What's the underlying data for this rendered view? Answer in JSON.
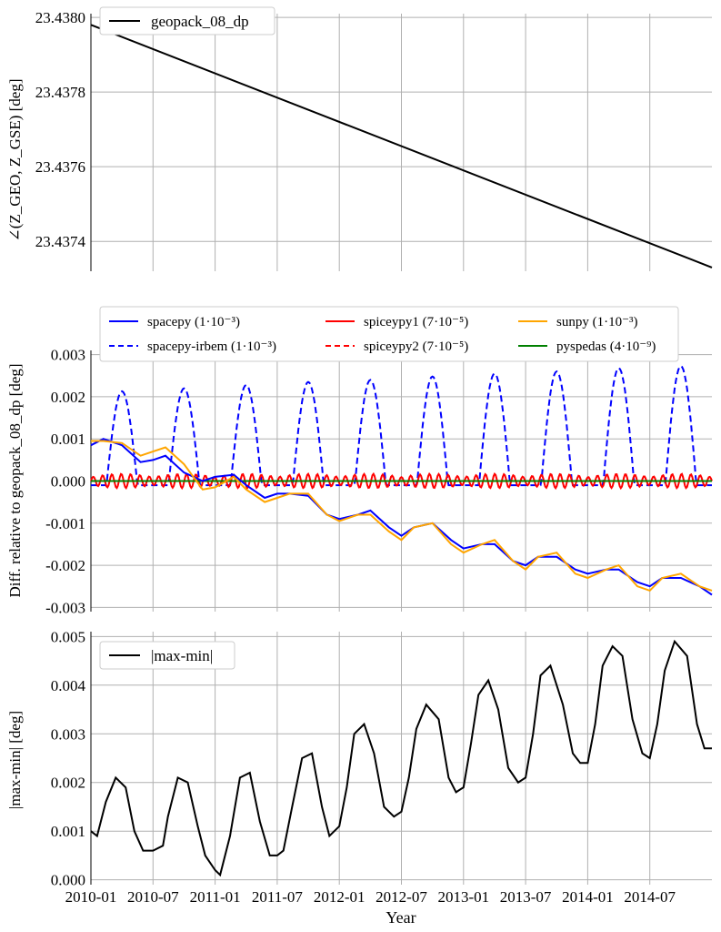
{
  "xlabel": "Year",
  "xticks": [
    "2010-01",
    "2010-07",
    "2011-01",
    "2011-07",
    "2012-01",
    "2012-07",
    "2013-01",
    "2013-07",
    "2014-01",
    "2014-07"
  ],
  "chart_data": [
    {
      "type": "line",
      "title": "",
      "ylabel": "∠(Z_GEO, Z_GSE) [deg]",
      "ylim": [
        23.43732,
        23.43801
      ],
      "yticks": [
        "23.4374",
        "23.4376",
        "23.4378",
        "23.4380"
      ],
      "grid": true,
      "legend_position": "top-left",
      "x": [
        "2010-01-01",
        "2014-12-31"
      ],
      "series": [
        {
          "name": "geopack_08_dp",
          "color": "#000000",
          "style": "solid",
          "values": [
            23.43798,
            23.43733
          ]
        }
      ]
    },
    {
      "type": "line",
      "ylabel": "Diff. relative to geopack_08_dp [deg]",
      "ylim": [
        -0.0031,
        0.0031
      ],
      "yticks": [
        "-0.003",
        "-0.002",
        "-0.001",
        "0.000",
        "0.001",
        "0.002",
        "0.003"
      ],
      "grid": true,
      "legend_position": "top",
      "legend": [
        {
          "label": "spacepy",
          "err": "(1·10⁻³)",
          "color": "#0000ff",
          "style": "solid"
        },
        {
          "label": "spacepy-irbem",
          "err": "(1·10⁻³)",
          "color": "#0000ff",
          "style": "dashed"
        },
        {
          "label": "spiceypy1",
          "err": "(7·10⁻⁵)",
          "color": "#ff0000",
          "style": "solid"
        },
        {
          "label": "spiceypy2",
          "err": "(7·10⁻⁵)",
          "color": "#ff0000",
          "style": "dashed"
        },
        {
          "label": "sunpy",
          "err": "(1·10⁻³)",
          "color": "#ffa500",
          "style": "solid"
        },
        {
          "label": "pyspedas",
          "err": "(4·10⁻⁹)",
          "color": "#008000",
          "style": "solid"
        }
      ],
      "x_years": [
        2010.0,
        2010.1,
        2010.25,
        2010.4,
        2010.5,
        2010.6,
        2010.75,
        2010.9,
        2011.0,
        2011.15,
        2011.25,
        2011.4,
        2011.5,
        2011.6,
        2011.75,
        2011.9,
        2012.0,
        2012.15,
        2012.25,
        2012.4,
        2012.5,
        2012.6,
        2012.75,
        2012.9,
        2013.0,
        2013.15,
        2013.25,
        2013.4,
        2013.5,
        2013.6,
        2013.75,
        2013.9,
        2014.0,
        2014.15,
        2014.25,
        2014.4,
        2014.5,
        2014.6,
        2014.75,
        2014.9,
        2015.0
      ],
      "series": [
        {
          "name": "spacepy",
          "values": [
            0.00085,
            0.001,
            0.00085,
            0.00045,
            0.0005,
            0.0006,
            0.0002,
            0.0,
            0.0001,
            0.00015,
            -0.0001,
            -0.0004,
            -0.0003,
            -0.0003,
            -0.00035,
            -0.0008,
            -0.0009,
            -0.0008,
            -0.0007,
            -0.0011,
            -0.0013,
            -0.0011,
            -0.001,
            -0.0014,
            -0.0016,
            -0.0015,
            -0.0015,
            -0.0019,
            -0.002,
            -0.0018,
            -0.0018,
            -0.0021,
            -0.0022,
            -0.0021,
            -0.0021,
            -0.0024,
            -0.0025,
            -0.0023,
            -0.0023,
            -0.0025,
            -0.0027
          ]
        },
        {
          "name": "sunpy",
          "values": [
            0.00095,
            0.00095,
            0.0009,
            0.0006,
            0.0007,
            0.0008,
            0.0004,
            -0.0002,
            -0.00015,
            0.0001,
            -0.0002,
            -0.0005,
            -0.0004,
            -0.0003,
            -0.0003,
            -0.0008,
            -0.00095,
            -0.0008,
            -0.0008,
            -0.0012,
            -0.0014,
            -0.0011,
            -0.001,
            -0.0015,
            -0.0017,
            -0.0015,
            -0.0014,
            -0.0019,
            -0.0021,
            -0.0018,
            -0.0017,
            -0.0022,
            -0.0023,
            -0.0021,
            -0.002,
            -0.0025,
            -0.0026,
            -0.0023,
            -0.0022,
            -0.0025,
            -0.0026
          ]
        }
      ],
      "irbem_peaks": {
        "years": [
          2010.25,
          2010.75,
          2011.25,
          2011.75,
          2012.25,
          2012.75,
          2013.25,
          2013.75,
          2014.25,
          2014.75
        ],
        "values": [
          0.00213,
          0.0022,
          0.00228,
          0.00235,
          0.0024,
          0.00248,
          0.00255,
          0.0026,
          0.00268,
          0.00273
        ],
        "base": -0.0001
      },
      "spiceypy_amplitude": 0.00017
    },
    {
      "type": "line",
      "ylabel": "|max-min| [deg]",
      "ylim": [
        -0.0001,
        0.0051
      ],
      "yticks": [
        "0.000",
        "0.001",
        "0.002",
        "0.003",
        "0.004",
        "0.005"
      ],
      "grid": true,
      "legend_position": "top-left",
      "series": [
        {
          "name": "|max-min|",
          "color": "#000000",
          "style": "solid",
          "x_years": [
            2010.0,
            2010.05,
            2010.12,
            2010.2,
            2010.28,
            2010.35,
            2010.42,
            2010.5,
            2010.58,
            2010.62,
            2010.7,
            2010.78,
            2010.86,
            2010.92,
            2011.0,
            2011.04,
            2011.12,
            2011.2,
            2011.28,
            2011.36,
            2011.44,
            2011.5,
            2011.55,
            2011.62,
            2011.7,
            2011.78,
            2011.86,
            2011.92,
            2012.0,
            2012.06,
            2012.12,
            2012.2,
            2012.28,
            2012.36,
            2012.44,
            2012.5,
            2012.56,
            2012.62,
            2012.7,
            2012.8,
            2012.88,
            2012.94,
            2013.0,
            2013.06,
            2013.12,
            2013.2,
            2013.28,
            2013.36,
            2013.44,
            2013.5,
            2013.56,
            2013.62,
            2013.7,
            2013.8,
            2013.88,
            2013.94,
            2014.0,
            2014.06,
            2014.12,
            2014.2,
            2014.28,
            2014.36,
            2014.44,
            2014.5,
            2014.56,
            2014.62,
            2014.7,
            2014.8,
            2014.88,
            2014.94,
            2015.0
          ],
          "values": [
            0.001,
            0.0009,
            0.0016,
            0.0021,
            0.0019,
            0.001,
            0.0006,
            0.0006,
            0.0007,
            0.0013,
            0.0021,
            0.002,
            0.0011,
            0.0005,
            0.0002,
            0.0001,
            0.0009,
            0.0021,
            0.0022,
            0.0012,
            0.0005,
            0.0005,
            0.0006,
            0.0015,
            0.0025,
            0.0026,
            0.0015,
            0.0009,
            0.0011,
            0.0019,
            0.003,
            0.0032,
            0.0026,
            0.0015,
            0.0013,
            0.0014,
            0.0021,
            0.0031,
            0.0036,
            0.0033,
            0.0021,
            0.0018,
            0.0019,
            0.0028,
            0.0038,
            0.0041,
            0.0035,
            0.0023,
            0.002,
            0.0021,
            0.003,
            0.0042,
            0.0044,
            0.0036,
            0.0026,
            0.0024,
            0.0024,
            0.0032,
            0.0044,
            0.0048,
            0.0046,
            0.0033,
            0.0026,
            0.0025,
            0.0032,
            0.0043,
            0.0049,
            0.0046,
            0.0032,
            0.0027,
            0.0027
          ]
        }
      ]
    }
  ]
}
